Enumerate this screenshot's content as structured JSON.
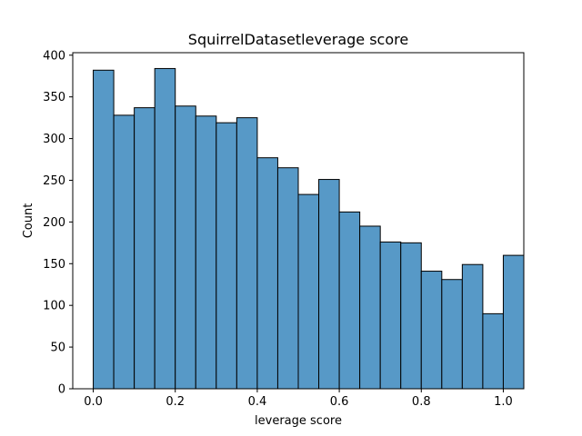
{
  "chart_data": {
    "type": "bar",
    "title": "SquirrelDatasetleverage score",
    "xlabel": "leverage score",
    "ylabel": "Count",
    "bin_edges": [
      0.0,
      0.05,
      0.1,
      0.15,
      0.2,
      0.25,
      0.3,
      0.35,
      0.4,
      0.45,
      0.5,
      0.55,
      0.6,
      0.65,
      0.7,
      0.75,
      0.8,
      0.85,
      0.9,
      0.95,
      1.0
    ],
    "values": [
      382,
      328,
      337,
      384,
      339,
      327,
      319,
      325,
      277,
      265,
      233,
      251,
      212,
      195,
      176,
      175,
      141,
      131,
      149,
      90,
      160
    ],
    "xlim": [
      -0.05,
      1.05
    ],
    "ylim": [
      0,
      403
    ],
    "xticks": [
      "0.0",
      "0.2",
      "0.4",
      "0.6",
      "0.8",
      "1.0"
    ],
    "yticks": [
      "0",
      "50",
      "100",
      "150",
      "200",
      "250",
      "300",
      "350",
      "400"
    ],
    "bar_color": "#5799c7",
    "edge_color": "#000000",
    "grid": false,
    "legend": "none"
  }
}
